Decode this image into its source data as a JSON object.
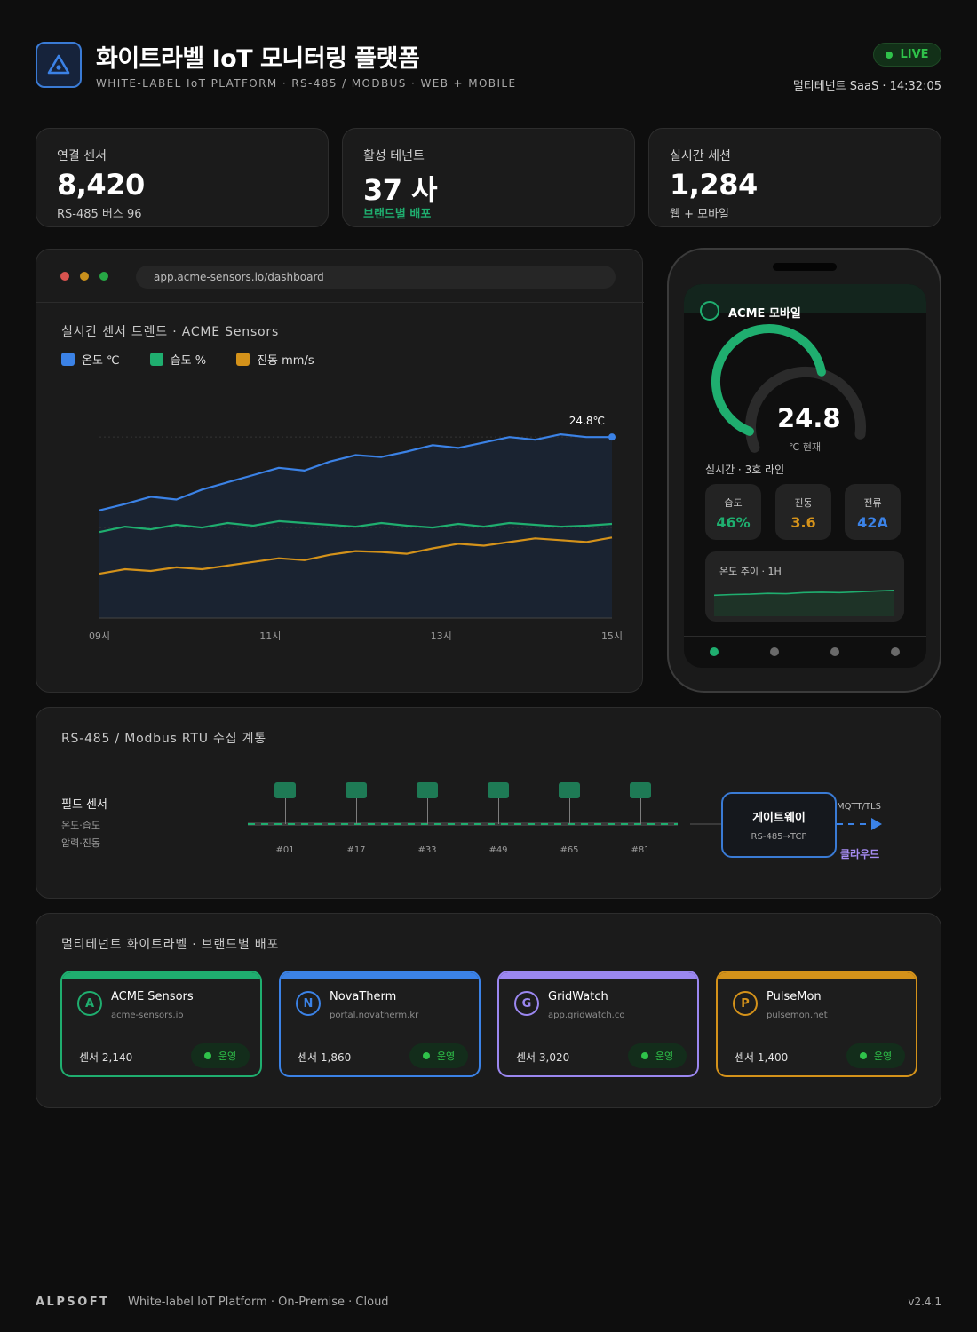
{
  "header": {
    "title": "화이트라벨 IoT 모니터링 플랫폼",
    "subtitle": "WHITE-LABEL IoT PLATFORM · RS-485 / MODBUS · WEB + MOBILE",
    "live_label": "LIVE",
    "meta": "멀티테넌트 SaaS · 14:32:05",
    "logo_icon": "triangle-eye-icon"
  },
  "stats": [
    {
      "label": "연결 센서",
      "value": "8,420",
      "sub": "RS-485 버스 96"
    },
    {
      "label": "활성 테넌트",
      "value": "37 사",
      "sub": "브랜드별 배포"
    },
    {
      "label": "실시간 세션",
      "value": "1,284",
      "sub": "웹 + 모바일"
    }
  ],
  "browser": {
    "url": "app.acme-sensors.io/dashboard",
    "chart_title": "실시간 센서 트렌드 · ACME Sensors"
  },
  "chart_data": {
    "type": "area",
    "x": [
      "09시",
      "",
      "",
      "",
      "",
      "",
      "",
      "",
      "",
      "",
      "",
      "",
      "",
      "",
      "",
      "",
      "",
      "",
      "",
      "",
      "15시"
    ],
    "x_ticks": [
      "09시",
      "11시",
      "13시",
      "15시"
    ],
    "series": [
      {
        "name": "온도 ℃",
        "color": "#3b82e6",
        "values": [
          0.595,
          0.63,
          0.67,
          0.655,
          0.71,
          0.75,
          0.79,
          0.83,
          0.815,
          0.865,
          0.9,
          0.89,
          0.92,
          0.955,
          0.94,
          0.97,
          1.0,
          0.985,
          1.015,
          1.0,
          1.0
        ]
      },
      {
        "name": "습도 %",
        "color": "#1fae6f",
        "values": [
          0.475,
          0.505,
          0.49,
          0.515,
          0.5,
          0.525,
          0.51,
          0.535,
          0.525,
          0.515,
          0.505,
          0.525,
          0.51,
          0.5,
          0.52,
          0.505,
          0.525,
          0.515,
          0.505,
          0.51,
          0.52
        ]
      },
      {
        "name": "진동 mm/s",
        "color": "#d4921a",
        "values": [
          0.245,
          0.27,
          0.26,
          0.28,
          0.27,
          0.29,
          0.31,
          0.33,
          0.32,
          0.35,
          0.37,
          0.365,
          0.355,
          0.385,
          0.41,
          0.4,
          0.42,
          0.44,
          0.43,
          0.42,
          0.445
        ]
      }
    ],
    "annotation": "24.8℃",
    "ylim": [
      0,
      1.3
    ],
    "grid": true
  },
  "phone": {
    "app_name": "ACME 모바일",
    "gauge_value": "24.8",
    "gauge_fraction": 0.6,
    "gauge_unit": "℃ 현재",
    "line_label": "실시간 · 3호 라인",
    "tiles": [
      {
        "label": "습도",
        "value": "46%",
        "color": "#1fae6f"
      },
      {
        "label": "진동",
        "value": "3.6",
        "color": "#d4921a"
      },
      {
        "label": "전류",
        "value": "42A",
        "color": "#3b82e6"
      }
    ],
    "trend_label": "온도 추이 · 1H",
    "trend_values": [
      0.55,
      0.57,
      0.58,
      0.6,
      0.59,
      0.62,
      0.63,
      0.62,
      0.64,
      0.66,
      0.68
    ]
  },
  "bus": {
    "title": "RS-485 / Modbus RTU 수집 계통",
    "field_title": "필드 센서",
    "field_line1": "온도·습도",
    "field_line2": "압력·진동",
    "nodes": [
      "#01",
      "#17",
      "#33",
      "#49",
      "#65",
      "#81"
    ],
    "gateway_title": "게이트웨이",
    "gateway_sub": "RS-485→TCP",
    "protocol": "MQTT/TLS",
    "cloud": "클라우드"
  },
  "tenants": {
    "title": "멀티테넌트 화이트라벨 · 브랜드별 배포",
    "items": [
      {
        "initial": "A",
        "name": "ACME Sensors",
        "domain": "acme-sensors.io",
        "count": "센서 2,140",
        "status": "운영",
        "color": "#1fae6f"
      },
      {
        "initial": "N",
        "name": "NovaTherm",
        "domain": "portal.novatherm.kr",
        "count": "센서 1,860",
        "status": "운영",
        "color": "#3b82e6"
      },
      {
        "initial": "G",
        "name": "GridWatch",
        "domain": "app.gridwatch.co",
        "count": "센서 3,020",
        "status": "운영",
        "color": "#9b87f0"
      },
      {
        "initial": "P",
        "name": "PulseMon",
        "domain": "pulsemon.net",
        "count": "센서 1,400",
        "status": "운영",
        "color": "#d4921a"
      }
    ]
  },
  "footer": {
    "brand": "ALPSOFT",
    "desc": "White-label IoT Platform · On-Premise · Cloud",
    "version": "v2.4.1"
  }
}
